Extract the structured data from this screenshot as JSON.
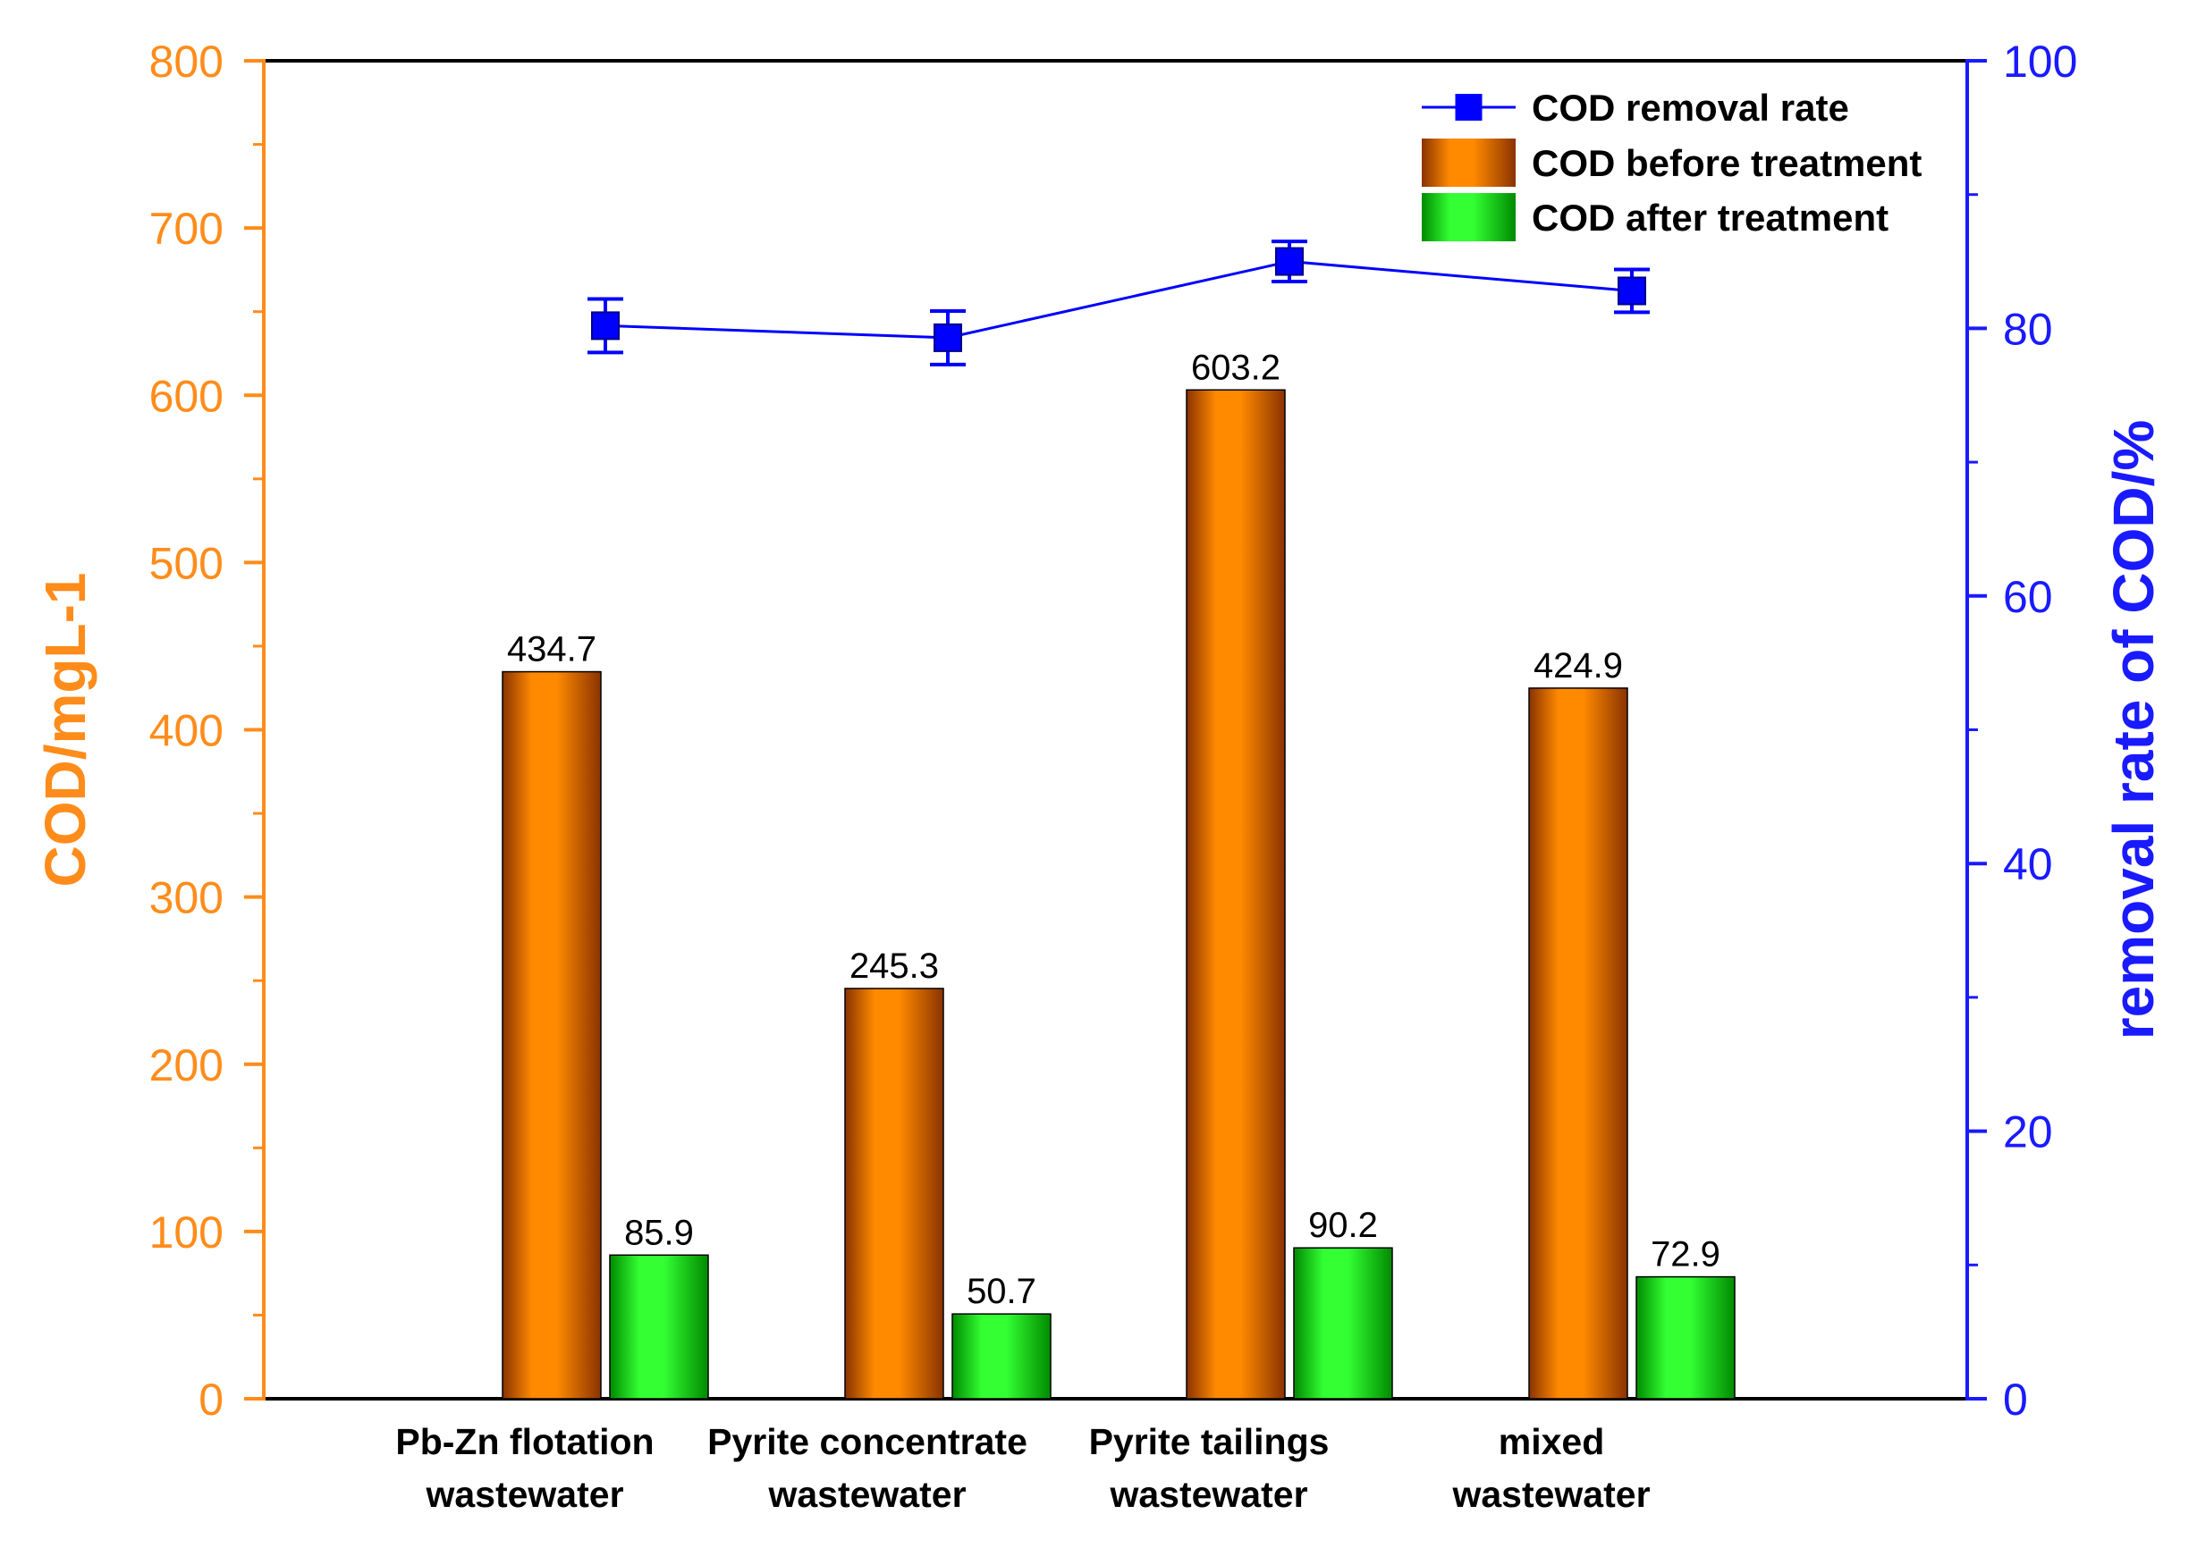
{
  "chart_data": {
    "type": "bar",
    "categories": [
      [
        "Pb-Zn flotation",
        "wastewater"
      ],
      [
        "Pyrite concentrate",
        "wastewater"
      ],
      [
        "Pyrite tailings",
        "wastewater"
      ],
      [
        "mixed",
        "wastewater"
      ]
    ],
    "series": [
      {
        "name": "COD before treatment",
        "axis": "left",
        "kind": "bar",
        "values": [
          434.7,
          245.3,
          603.2,
          424.9
        ],
        "labels": [
          "434.7",
          "245.3",
          "603.2",
          "424.9"
        ]
      },
      {
        "name": "COD after treatment",
        "axis": "left",
        "kind": "bar",
        "values": [
          85.9,
          50.7,
          90.2,
          72.9
        ],
        "labels": [
          "85.9",
          "50.7",
          "90.2",
          "72.9"
        ]
      },
      {
        "name": "COD removal rate",
        "axis": "right",
        "kind": "line",
        "values": [
          80.2,
          79.3,
          85.0,
          82.8
        ],
        "errors": [
          2.0,
          2.0,
          1.5,
          1.6
        ]
      }
    ],
    "ylabel_left": "COD/mgL-1",
    "ylabel_right": "removal rate of COD/%",
    "ylim_left": [
      0,
      800
    ],
    "ylim_right": [
      0,
      100
    ],
    "yticks_left": [
      "0",
      "100",
      "200",
      "300",
      "400",
      "500",
      "600",
      "700",
      "800"
    ],
    "yticks_right": [
      "0",
      "20",
      "40",
      "60",
      "80",
      "100"
    ],
    "legend_position": "top-right",
    "grid": false
  },
  "colors": {
    "left_axis": "#ff8c1a",
    "right_axis": "#1a1aff",
    "bar_before_mid": "#ff8a00",
    "bar_before_edge": "#8a3300",
    "bar_after_mid": "#33ff33",
    "bar_after_edge": "#008a00",
    "line": "#0000ff"
  }
}
